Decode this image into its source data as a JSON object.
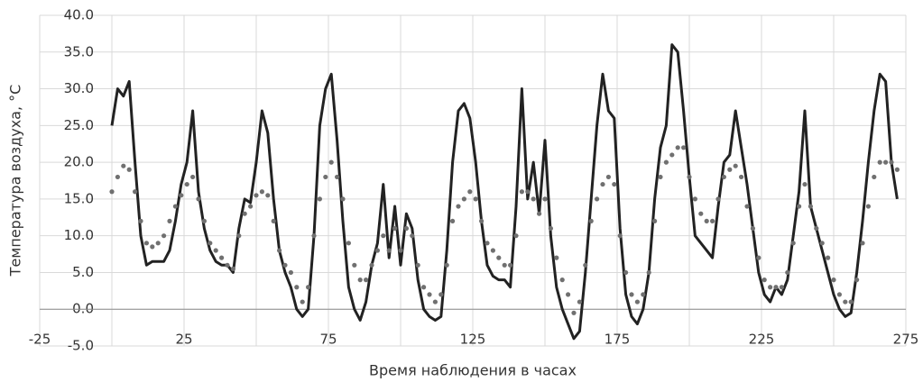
{
  "chart_data": {
    "type": "line",
    "xlabel": "Время наблюдения в часах",
    "ylabel": "Температура воздуха, °C",
    "xlim": [
      -25,
      275
    ],
    "xticks": [
      -25,
      25,
      75,
      125,
      175,
      225,
      275
    ],
    "x_minor_grid": [
      0,
      50,
      100,
      150,
      200,
      250
    ],
    "ylim": [
      -5,
      40
    ],
    "yticks": [
      {
        "value": -5,
        "label": "-5.0"
      },
      {
        "value": 0,
        "label": "0.0"
      },
      {
        "value": 5,
        "label": "5.0"
      },
      {
        "value": 10,
        "label": "10.0"
      },
      {
        "value": 15,
        "label": "15.0"
      },
      {
        "value": 20,
        "label": "20.0"
      },
      {
        "value": 25,
        "label": "25.0"
      },
      {
        "value": 30,
        "label": "30.0"
      },
      {
        "value": 35,
        "label": "35.0"
      },
      {
        "value": 40,
        "label": "40.0"
      }
    ],
    "grid": true,
    "x": [
      0,
      2,
      4,
      6,
      8,
      10,
      12,
      14,
      16,
      18,
      20,
      22,
      24,
      26,
      28,
      30,
      32,
      34,
      36,
      38,
      40,
      42,
      44,
      46,
      48,
      50,
      52,
      54,
      56,
      58,
      60,
      62,
      64,
      66,
      68,
      70,
      72,
      74,
      76,
      78,
      80,
      82,
      84,
      86,
      88,
      90,
      92,
      94,
      96,
      98,
      100,
      102,
      104,
      106,
      108,
      110,
      112,
      114,
      116,
      118,
      120,
      122,
      124,
      126,
      128,
      130,
      132,
      134,
      136,
      138,
      140,
      142,
      144,
      146,
      148,
      150,
      152,
      154,
      156,
      158,
      160,
      162,
      164,
      166,
      168,
      170,
      172,
      174,
      176,
      178,
      180,
      182,
      184,
      186,
      188,
      190,
      192,
      194,
      196,
      198,
      200,
      202,
      204,
      206,
      208,
      210,
      212,
      214,
      216,
      218,
      220,
      222,
      224,
      226,
      228,
      230,
      232,
      234,
      236,
      238,
      240,
      242,
      244,
      246,
      248,
      250,
      252,
      254,
      256,
      258,
      260,
      262,
      264,
      266,
      268,
      270,
      272
    ],
    "series": [
      {
        "style": "solid",
        "color": "#222222",
        "values": [
          25,
          30,
          29,
          31,
          20,
          10,
          6,
          6.5,
          6.5,
          6.5,
          8,
          12,
          17,
          20,
          27,
          16,
          11,
          8,
          6.5,
          6,
          6,
          5,
          11,
          15,
          14.5,
          20,
          27,
          24,
          15,
          8,
          5,
          3,
          0,
          -1,
          0,
          10,
          25,
          30,
          32,
          23,
          12,
          3,
          0,
          -1.5,
          1,
          6,
          9,
          17,
          7,
          14,
          6,
          13,
          11,
          4,
          0,
          -1,
          -1.5,
          -1,
          8,
          20,
          27,
          28,
          26,
          20,
          12,
          6,
          4.5,
          4,
          4,
          3,
          14,
          30,
          15,
          20,
          13,
          23,
          10,
          3,
          0,
          -2,
          -4,
          -3,
          5,
          15,
          25,
          32,
          27,
          26,
          11,
          2,
          -1,
          -2,
          0,
          5,
          15,
          22,
          25,
          36,
          35,
          27,
          18,
          10,
          9,
          8,
          7,
          14,
          20,
          21,
          27,
          22,
          17,
          11,
          5,
          2,
          1,
          3,
          2,
          4,
          10,
          16,
          27,
          14,
          11,
          8,
          5,
          2,
          0,
          -1,
          -0.5,
          5,
          12,
          20,
          27,
          32,
          31,
          20,
          15
        ]
      },
      {
        "style": "dotted",
        "color": "#707070",
        "values": [
          16,
          18,
          19.5,
          19,
          16,
          12,
          9,
          8.5,
          9,
          10,
          12,
          14,
          15.5,
          17,
          18,
          15,
          12,
          9,
          8,
          7,
          6,
          5.5,
          10,
          13,
          14,
          15.5,
          16,
          15.5,
          12,
          8,
          6,
          5,
          3,
          1,
          3,
          10,
          15,
          18,
          20,
          18,
          15,
          9,
          6,
          4,
          4,
          6,
          8,
          10,
          8,
          11,
          8,
          11,
          10,
          6,
          3,
          2,
          1,
          2,
          6,
          12,
          14,
          15,
          16,
          15,
          12,
          9,
          8,
          7,
          6,
          6,
          10,
          16,
          16,
          15,
          13,
          15,
          11,
          7,
          4,
          2,
          -0.5,
          1,
          6,
          12,
          15,
          17,
          18,
          17,
          10,
          5,
          2,
          1,
          2,
          5,
          12,
          18,
          20,
          21,
          22,
          22,
          18,
          15,
          13,
          12,
          12,
          15,
          18,
          19,
          19.5,
          18,
          14,
          11,
          7,
          4,
          3,
          3,
          3,
          5,
          9,
          14,
          17,
          14,
          11,
          9,
          7,
          4,
          2,
          1,
          1,
          4,
          9,
          14,
          18,
          20,
          20,
          20,
          19
        ]
      }
    ]
  }
}
